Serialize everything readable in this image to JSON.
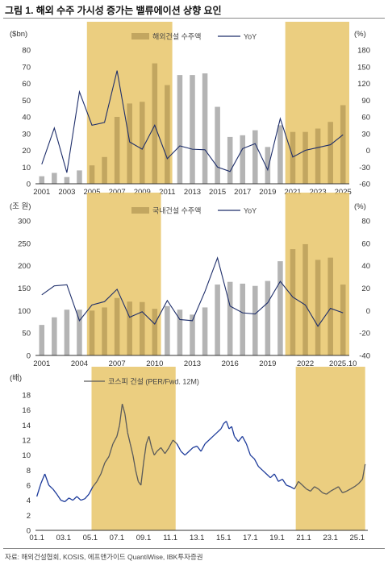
{
  "figure": {
    "title": "그림 1. 해외 수주 가시성 증가는 밸류에이션 상향 요인",
    "source": "자료: 해외건설협회, KOSIS, 에프앤가이드 QuantiWise, IBK투자증권"
  },
  "colors": {
    "highlight": "#e8c56a",
    "bar": "#b4b4b4",
    "bar_in_highlight": "#c2a660",
    "line_dark": "#1f2f6b",
    "line_gray": "#5a5a5a",
    "line_blue": "#1c3a9a"
  },
  "chart_data": [
    {
      "type": "bar",
      "left_unit": "($bn)",
      "right_unit": "(%)",
      "legend": [
        "해외건설 수주액",
        "YoY"
      ],
      "x": [
        2001,
        2002,
        2003,
        2004,
        2005,
        2006,
        2007,
        2008,
        2009,
        2010,
        2011,
        2012,
        2013,
        2014,
        2015,
        2016,
        2017,
        2018,
        2019,
        2020,
        2021,
        2022,
        2023,
        2024,
        2025
      ],
      "x_tick_labels": [
        "2001",
        "2003",
        "2005",
        "2007",
        "2009",
        "2011",
        "2013",
        "2015",
        "2017",
        "2019",
        "2021",
        "2023",
        "2025"
      ],
      "series": [
        {
          "name": "해외건설 수주액",
          "axis": "left",
          "values": [
            4.5,
            6.5,
            4,
            8,
            11,
            16,
            40,
            48,
            49,
            72,
            59,
            65,
            65,
            66,
            46,
            28,
            29,
            32,
            22,
            35,
            31,
            31,
            33,
            37,
            47
          ]
        },
        {
          "name": "YoY",
          "axis": "right",
          "values": [
            -25,
            40,
            -40,
            105,
            45,
            50,
            143,
            15,
            2,
            45,
            -15,
            8,
            2,
            1,
            -30,
            -38,
            3,
            12,
            -35,
            57,
            -12,
            0,
            5,
            10,
            28
          ]
        }
      ],
      "ylim_left": [
        0,
        80
      ],
      "yticks_left": [
        0,
        10,
        20,
        30,
        40,
        50,
        60,
        70,
        80
      ],
      "ylim_right": [
        -60,
        180
      ],
      "yticks_right": [
        -60,
        -30,
        0,
        30,
        60,
        90,
        120,
        150,
        180
      ],
      "highlight_ranges": [
        [
          2004.6,
          2011.4
        ],
        [
          2020.4,
          2025.6
        ]
      ]
    },
    {
      "type": "bar",
      "left_unit": "(조 원)",
      "right_unit": "(%)",
      "legend": [
        "국내건설 수주액",
        "YoY"
      ],
      "x": [
        2001,
        2002,
        2003,
        2004,
        2005,
        2006,
        2007,
        2008,
        2009,
        2010,
        2011,
        2012,
        2013,
        2014,
        2015,
        2016,
        2017,
        2018,
        2019,
        2020,
        2021,
        2022,
        2023,
        2024,
        2025
      ],
      "x_tick_labels": [
        "2001",
        "2004",
        "2007",
        "2010",
        "2013",
        "2016",
        "2019",
        "2022",
        "2025.10"
      ],
      "x_tick_positions": [
        2001,
        2004,
        2007,
        2010,
        2013,
        2016,
        2019,
        2022,
        2025
      ],
      "series": [
        {
          "name": "국내건설 수주액",
          "axis": "left",
          "values": [
            68,
            85,
            102,
            102,
            100,
            107,
            128,
            120,
            119,
            104,
            110,
            102,
            91,
            107,
            158,
            164,
            160,
            155,
            166,
            210,
            237,
            248,
            213,
            218,
            158
          ]
        },
        {
          "name": "YoY",
          "axis": "right",
          "values": [
            14,
            22,
            23,
            -9,
            5,
            8,
            19,
            -6,
            -1,
            -12,
            9,
            -8,
            -9,
            17,
            47,
            4,
            -2,
            -3,
            7,
            26,
            12,
            5,
            -14,
            2,
            -2
          ]
        }
      ],
      "ylim_left": [
        0,
        300
      ],
      "yticks_left": [
        0,
        50,
        100,
        150,
        200,
        250,
        300
      ],
      "ylim_right": [
        -40,
        80
      ],
      "yticks_right": [
        -40,
        -20,
        0,
        20,
        40,
        60,
        80
      ],
      "highlight_ranges": [
        [
          2004.6,
          2010.5
        ],
        [
          2020.4,
          2025.6
        ]
      ]
    },
    {
      "type": "line",
      "left_unit": "(배)",
      "legend": [
        "코스피 건설 (PER/Fwd. 12M)"
      ],
      "x_tick_labels": [
        "01.1",
        "03.1",
        "05.1",
        "07.1",
        "09.1",
        "11.1",
        "13.1",
        "15.1",
        "17.1",
        "19.1",
        "21.1",
        "23.1",
        "25.1"
      ],
      "x_tick_positions": [
        2001,
        2003,
        2005,
        2007,
        2009,
        2011,
        2013,
        2015,
        2017,
        2019,
        2021,
        2023,
        2025
      ],
      "series": [
        {
          "name": "코스피 건설 (PER/Fwd. 12M)",
          "x": [
            2001.0,
            2001.3,
            2001.6,
            2001.9,
            2002.2,
            2002.5,
            2002.8,
            2003.1,
            2003.4,
            2003.7,
            2004.0,
            2004.3,
            2004.6,
            2004.9,
            2005.2,
            2005.5,
            2005.8,
            2006.1,
            2006.4,
            2006.7,
            2007.0,
            2007.2,
            2007.4,
            2007.6,
            2007.8,
            2008.0,
            2008.2,
            2008.4,
            2008.6,
            2008.8,
            2009.0,
            2009.2,
            2009.4,
            2009.6,
            2009.8,
            2010.0,
            2010.3,
            2010.6,
            2010.9,
            2011.2,
            2011.5,
            2011.8,
            2012.1,
            2012.4,
            2012.7,
            2013.0,
            2013.3,
            2013.6,
            2013.9,
            2014.2,
            2014.5,
            2014.8,
            2015.0,
            2015.2,
            2015.4,
            2015.6,
            2015.8,
            2016.1,
            2016.4,
            2016.7,
            2017.0,
            2017.3,
            2017.6,
            2017.9,
            2018.2,
            2018.5,
            2018.8,
            2019.1,
            2019.4,
            2019.7,
            2020.0,
            2020.3,
            2020.6,
            2020.9,
            2021.2,
            2021.5,
            2021.8,
            2022.1,
            2022.4,
            2022.7,
            2023.0,
            2023.3,
            2023.6,
            2023.9,
            2024.2,
            2024.5,
            2024.8,
            2025.1,
            2025.4,
            2025.6
          ],
          "y": [
            4.5,
            6.2,
            7.5,
            6.0,
            5.5,
            4.8,
            4.0,
            3.8,
            4.3,
            4.0,
            4.5,
            4.0,
            4.2,
            4.8,
            5.8,
            6.5,
            7.5,
            9.0,
            9.8,
            11.5,
            12.5,
            14.0,
            16.8,
            15.5,
            13.0,
            11.5,
            10.0,
            8.0,
            6.5,
            6.0,
            9.0,
            11.5,
            12.5,
            11.0,
            10.0,
            10.5,
            11.0,
            10.2,
            11.0,
            12.0,
            11.5,
            10.5,
            10.0,
            10.5,
            11.0,
            11.2,
            10.5,
            11.5,
            12.0,
            12.5,
            13.0,
            13.5,
            14.2,
            14.5,
            13.5,
            13.8,
            12.5,
            11.8,
            12.5,
            11.5,
            10.0,
            9.5,
            8.5,
            8.0,
            7.5,
            7.0,
            7.5,
            6.5,
            6.8,
            6.0,
            5.8,
            5.5,
            6.5,
            6.0,
            5.5,
            5.2,
            5.8,
            5.5,
            5.0,
            4.8,
            5.2,
            5.5,
            5.8,
            5.0,
            5.2,
            5.5,
            5.8,
            6.2,
            6.8,
            8.8
          ]
        }
      ],
      "ylim": [
        0,
        18
      ],
      "yticks": [
        0,
        2,
        4,
        6,
        8,
        10,
        12,
        14,
        16,
        18
      ],
      "highlight_ranges": [
        [
          2005.1,
          2011.4
        ],
        [
          2020.4,
          2025.6
        ]
      ]
    }
  ]
}
